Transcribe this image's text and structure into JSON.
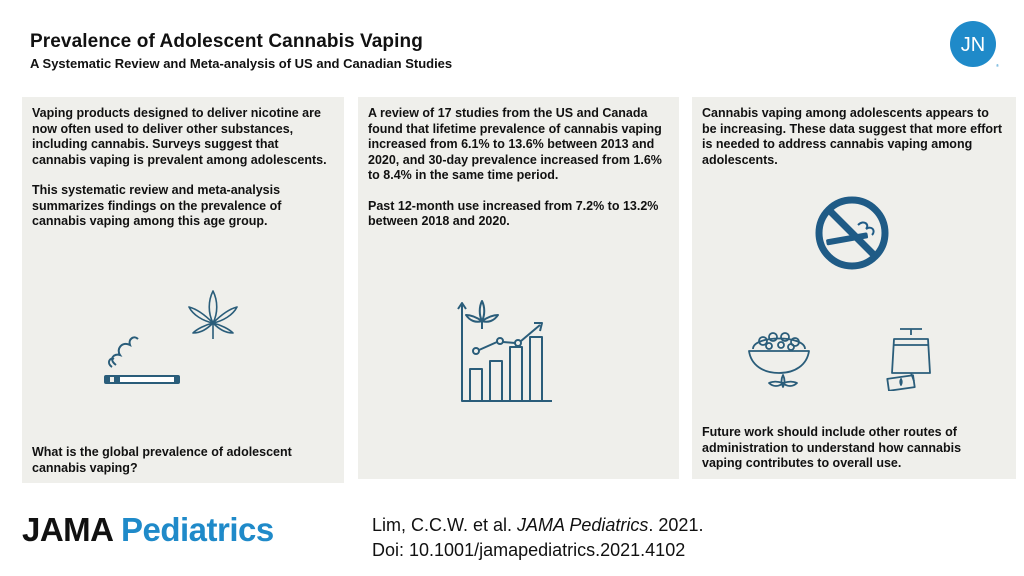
{
  "header": {
    "title": "Prevalence of Adolescent  Cannabis Vaping",
    "subtitle": "A  Systematic Review and Meta-analysis of US and Canadian Studies",
    "badge_text": "JN"
  },
  "panels": [
    {
      "paragraphs": [
        "Vaping products  designed to deliver nicotine are now often used to deliver other substances, including cannabis. Surveys suggest that cannabis vaping is prevalent among adolescents.",
        "This systematic review and meta-analysis summarizes findings on the prevalence of cannabis vaping among this age group."
      ],
      "bottom": "What is the global prevalence of adolescent cannabis vaping?",
      "icons": [
        "cannabis-leaf-icon",
        "vape-pen-icon"
      ]
    },
    {
      "paragraphs": [
        "A review of 17 studies from the US and Canada found that lifetime prevalence of cannabis vaping increased from 6.1% to 13.6% between 2013 and 2020, and 30-day prevalence increased from 1.6% to 8.4%  in the same time period.",
        "Past 12-month use increased from 7.2% to 13.2% between 2018 and 2020."
      ],
      "icons": [
        "rising-chart-icon"
      ]
    },
    {
      "paragraphs": [
        "Cannabis vaping among adolescents  appears to be increasing. These data suggest  that  more effort is needed to address  cannabis vaping among adolescents."
      ],
      "bottom": "Future work should include other routes of administration to understand how cannabis vaping contributes  to overall use.",
      "icons": [
        "no-vaping-icon",
        "edibles-bowl-icon",
        "tea-bag-icon"
      ]
    }
  ],
  "footer": {
    "logo_jama": "JAMA",
    "logo_peds": "Pediatrics",
    "cite_authors": "Lim, C.C.W. et al. ",
    "cite_journal": "JAMA Pediatrics",
    "cite_year": ". 2021.",
    "doi": "Doi: 10.1001/jamapediatrics.2021.4102"
  },
  "colors": {
    "accent": "#1f8ac9",
    "icon_teal": "#2a5d7a",
    "panel_bg": "#efefeb"
  }
}
